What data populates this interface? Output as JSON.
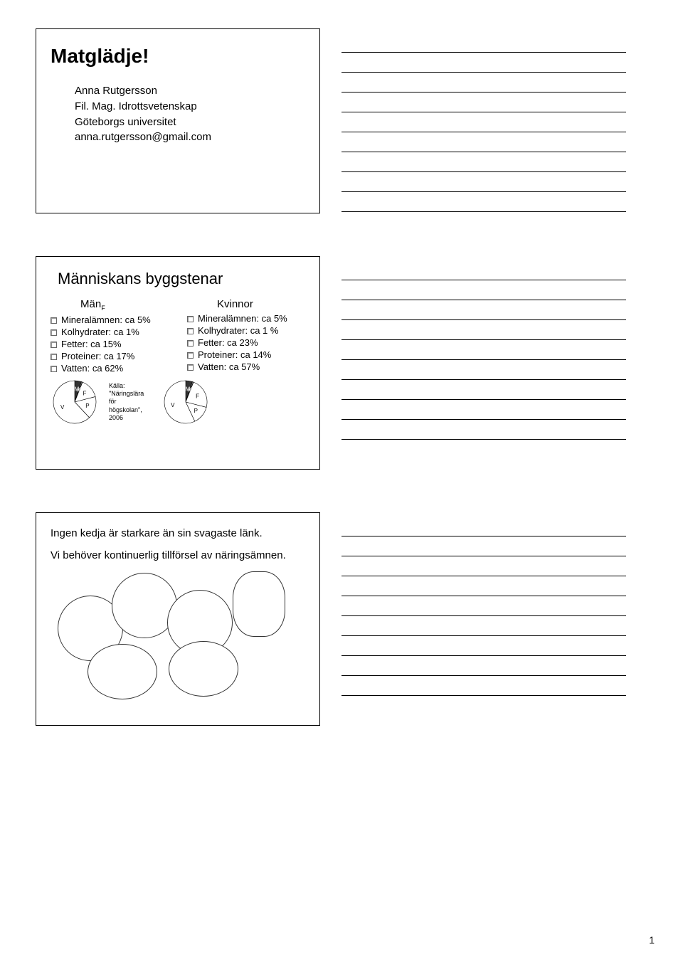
{
  "pageNumber": "1",
  "notes": {
    "linesPerBlock": 9,
    "lineColor": "#000000"
  },
  "slide1": {
    "title": "Matglädje!",
    "author": {
      "name": "Anna Rutgersson",
      "degree": "Fil. Mag. Idrottsvetenskap",
      "affiliation": "Göteborgs universitet",
      "email": "anna.rutgersson@gmail.com"
    }
  },
  "slide2": {
    "title": "Människans byggstenar",
    "columns": [
      {
        "heading": "Män",
        "headingSub": "F",
        "items": [
          "Mineralämnen: ca 5%",
          "Kolhydrater: ca 1%",
          "Fetter: ca 15%",
          "Proteiner: ca 17%",
          "Vatten: ca 62%"
        ],
        "pie": {
          "type": "pie",
          "labels": [
            "M",
            "K",
            "F",
            "P",
            "V"
          ],
          "values": [
            5,
            1,
            15,
            17,
            62
          ],
          "colors": [
            "#333333",
            "#666666",
            "#ffffff",
            "#ffffff",
            "#ffffff"
          ],
          "stroke": "#000000"
        }
      },
      {
        "heading": "Kvinnor",
        "headingSub": "",
        "items": [
          "Mineralämnen: ca 5%",
          "Kolhydrater: ca 1 %",
          "Fetter: ca 23%",
          "Proteiner: ca 14%",
          "Vatten: ca 57%"
        ],
        "pie": {
          "type": "pie",
          "labels": [
            "M",
            "K",
            "F",
            "P",
            "V"
          ],
          "values": [
            5,
            1,
            23,
            14,
            57
          ],
          "colors": [
            "#333333",
            "#666666",
            "#ffffff",
            "#ffffff",
            "#ffffff"
          ],
          "stroke": "#000000"
        }
      }
    ],
    "source": {
      "label": "Källa:",
      "text1": "\"Näringslära",
      "text2": "för",
      "text3": "högskolan\",",
      "text4": "2006"
    }
  },
  "slide3": {
    "line1": "Ingen kedja är starkare än sin svagaste länk.",
    "line2": "Vi behöver kontinuerlig tillförsel av näringsämnen.",
    "circleStyle": {
      "stroke": "#333333",
      "fill": "#ffffff"
    }
  }
}
